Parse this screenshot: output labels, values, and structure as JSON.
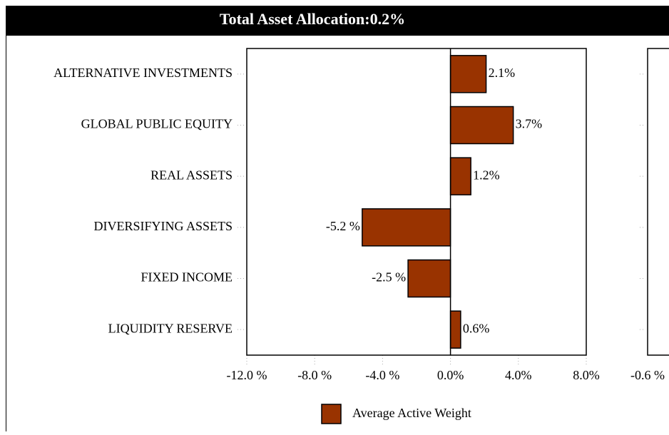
{
  "chart_data": [
    {
      "type": "bar",
      "orientation": "horizontal",
      "title": "Total Asset Allocation:0.2%",
      "categories": [
        "ALTERNATIVE INVESTMENTS",
        "GLOBAL PUBLIC EQUITY",
        "REAL ASSETS",
        "DIVERSIFYING ASSETS",
        "FIXED INCOME",
        "LIQUIDITY RESERVE"
      ],
      "series": [
        {
          "name": "Average Active Weight",
          "color": "#993300",
          "values": [
            2.1,
            3.7,
            1.2,
            -5.2,
            -2.5,
            0.6
          ],
          "value_labels": [
            "2.1%",
            "3.7%",
            "1.2%",
            "-5.2 %",
            "-2.5 %",
            "0.6%"
          ]
        }
      ],
      "xlim": [
        -12,
        8
      ],
      "xticks": [
        {
          "value": -12,
          "label": "-12.0 %"
        },
        {
          "value": -8,
          "label": "-8.0 %"
        },
        {
          "value": -4,
          "label": "-4.0 %"
        },
        {
          "value": 0,
          "label": "0.0%"
        },
        {
          "value": 4,
          "label": "4.0%"
        },
        {
          "value": 8,
          "label": "8.0%"
        }
      ],
      "grid": true
    },
    {
      "type": "bar",
      "orientation": "horizontal",
      "xticks": [
        {
          "value": -0.6,
          "label": "-0.6 %"
        }
      ]
    }
  ]
}
